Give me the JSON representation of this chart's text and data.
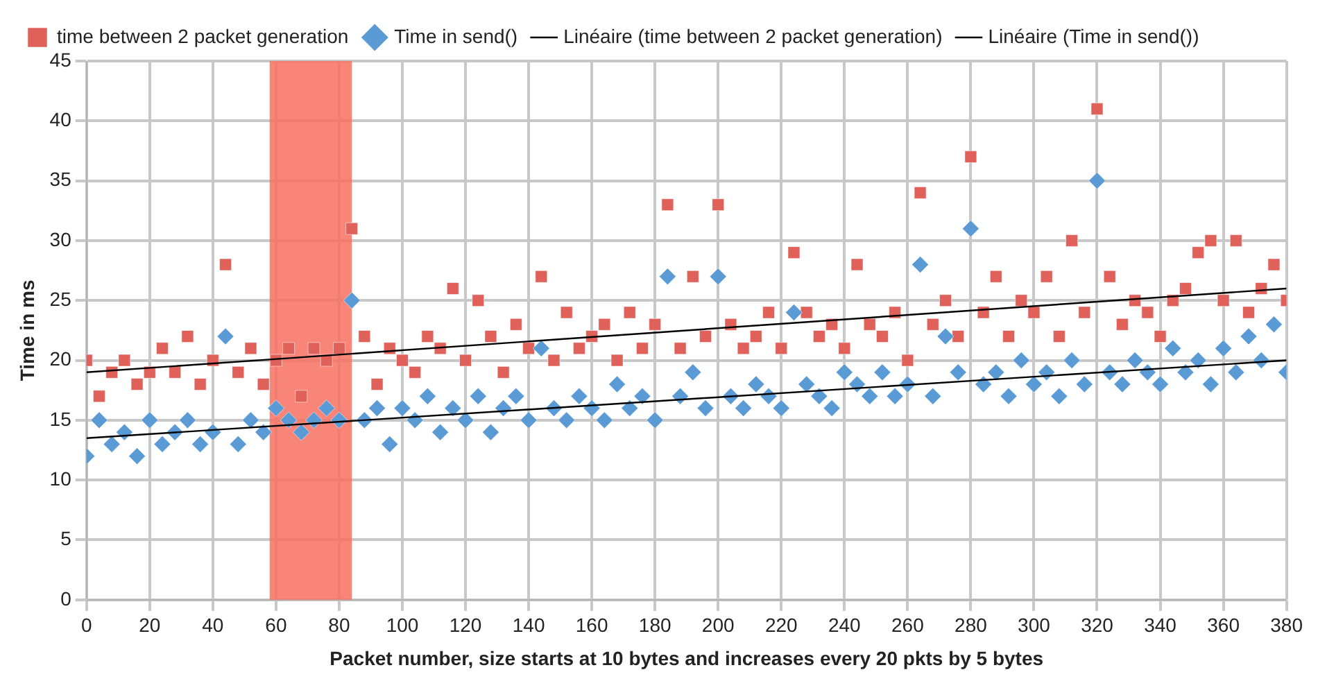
{
  "chart_data": {
    "type": "scatter",
    "xlabel": "Packet number, size starts at 10 bytes and increases every 20 pkts by 5 bytes",
    "ylabel": "Time in ms",
    "xlim": [
      0,
      380
    ],
    "xticks": [
      0,
      20,
      40,
      60,
      80,
      100,
      120,
      140,
      160,
      180,
      200,
      220,
      240,
      260,
      280,
      300,
      320,
      340,
      360,
      380
    ],
    "ylim": [
      0,
      45
    ],
    "yticks": [
      0,
      5,
      10,
      15,
      20,
      25,
      30,
      35,
      40,
      45
    ],
    "grid": true,
    "legend": "top",
    "bands": [
      {
        "axis": "x",
        "from": 58,
        "to": 84,
        "color": "#f87060"
      }
    ],
    "series": [
      {
        "name": "time between 2 packet generation",
        "marker": "square",
        "color": "#e0605a",
        "x": [
          0,
          4,
          8,
          12,
          16,
          20,
          24,
          28,
          32,
          36,
          40,
          44,
          48,
          52,
          56,
          60,
          64,
          68,
          72,
          76,
          80,
          84,
          88,
          92,
          96,
          100,
          104,
          108,
          112,
          116,
          120,
          124,
          128,
          132,
          136,
          140,
          144,
          148,
          152,
          156,
          160,
          164,
          168,
          172,
          176,
          180,
          184,
          188,
          192,
          196,
          200,
          204,
          208,
          212,
          216,
          220,
          224,
          228,
          232,
          236,
          240,
          244,
          248,
          252,
          256,
          260,
          264,
          268,
          272,
          276,
          280,
          284,
          288,
          292,
          296,
          300,
          304,
          308,
          312,
          316,
          320,
          324,
          328,
          332,
          336,
          340,
          344,
          348,
          352,
          356,
          360,
          364,
          368,
          372,
          376,
          380
        ],
        "values": [
          20,
          17,
          19,
          20,
          18,
          19,
          21,
          19,
          22,
          18,
          20,
          28,
          19,
          21,
          18,
          20,
          21,
          17,
          21,
          20,
          21,
          31,
          22,
          18,
          21,
          20,
          19,
          22,
          21,
          26,
          20,
          25,
          22,
          19,
          23,
          21,
          27,
          20,
          24,
          21,
          22,
          23,
          20,
          24,
          21,
          23,
          33,
          21,
          27,
          22,
          33,
          23,
          21,
          22,
          24,
          21,
          29,
          24,
          22,
          23,
          21,
          28,
          23,
          22,
          24,
          20,
          34,
          23,
          25,
          22,
          37,
          24,
          27,
          22,
          25,
          24,
          27,
          22,
          30,
          24,
          41,
          27,
          23,
          25,
          24,
          22,
          25,
          26,
          29,
          30,
          25,
          30,
          24,
          26,
          28,
          25
        ]
      },
      {
        "name": "Time in send()",
        "marker": "diamond",
        "color": "#5b9bd5",
        "x": [
          0,
          4,
          8,
          12,
          16,
          20,
          24,
          28,
          32,
          36,
          40,
          44,
          48,
          52,
          56,
          60,
          64,
          68,
          72,
          76,
          80,
          84,
          88,
          92,
          96,
          100,
          104,
          108,
          112,
          116,
          120,
          124,
          128,
          132,
          136,
          140,
          144,
          148,
          152,
          156,
          160,
          164,
          168,
          172,
          176,
          180,
          184,
          188,
          192,
          196,
          200,
          204,
          208,
          212,
          216,
          220,
          224,
          228,
          232,
          236,
          240,
          244,
          248,
          252,
          256,
          260,
          264,
          268,
          272,
          276,
          280,
          284,
          288,
          292,
          296,
          300,
          304,
          308,
          312,
          316,
          320,
          324,
          328,
          332,
          336,
          340,
          344,
          348,
          352,
          356,
          360,
          364,
          368,
          372,
          376,
          380
        ],
        "values": [
          12,
          15,
          13,
          14,
          12,
          15,
          13,
          14,
          15,
          13,
          14,
          22,
          13,
          15,
          14,
          16,
          15,
          14,
          15,
          16,
          15,
          25,
          15,
          16,
          13,
          16,
          15,
          17,
          14,
          16,
          15,
          17,
          14,
          16,
          17,
          15,
          21,
          16,
          15,
          17,
          16,
          15,
          18,
          16,
          17,
          15,
          27,
          17,
          19,
          16,
          27,
          17,
          16,
          18,
          17,
          16,
          24,
          18,
          17,
          16,
          19,
          18,
          17,
          19,
          17,
          18,
          28,
          17,
          22,
          19,
          31,
          18,
          19,
          17,
          20,
          18,
          19,
          17,
          20,
          18,
          35,
          19,
          18,
          20,
          19,
          18,
          21,
          19,
          20,
          18,
          21,
          19,
          22,
          20,
          23,
          19
        ]
      },
      {
        "name": "Linéaire (time between 2 packet generation)",
        "type": "line",
        "marker": "none",
        "color": "#000000",
        "x": [
          0,
          380
        ],
        "values": [
          19,
          26
        ]
      },
      {
        "name": "Linéaire (Time in send())",
        "type": "line",
        "marker": "none",
        "color": "#000000",
        "x": [
          0,
          380
        ],
        "values": [
          13.5,
          20
        ]
      }
    ]
  }
}
